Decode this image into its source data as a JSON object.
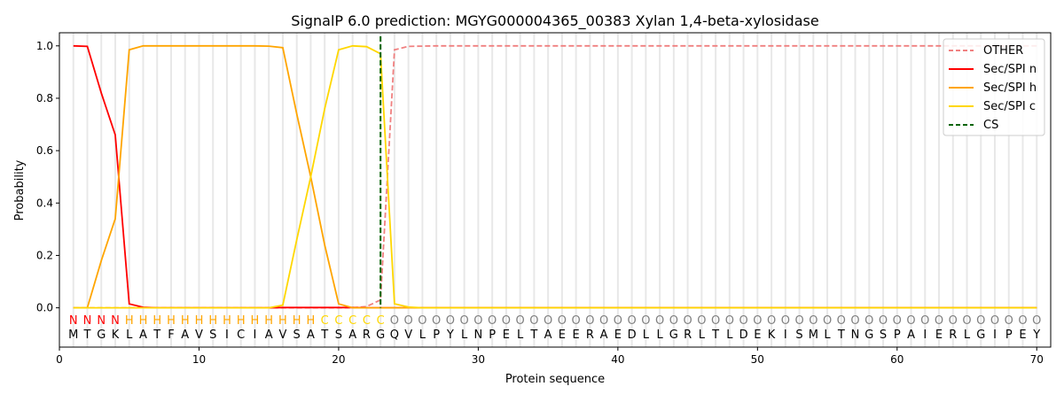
{
  "chart_data": {
    "type": "line",
    "title": "SignalP 6.0 prediction: MGYG000004365_00383 Xylan 1,4-beta-xylosidase",
    "xlabel": "Protein sequence",
    "ylabel": "Probability",
    "xlim": [
      0,
      71
    ],
    "ylim": [
      -0.15,
      1.05
    ],
    "xticks": [
      0,
      10,
      20,
      30,
      40,
      50,
      60,
      70
    ],
    "yticks": [
      0.0,
      0.2,
      0.4,
      0.6,
      0.8,
      1.0
    ],
    "grid": "vertical per residue",
    "legend_position": "top-right",
    "sequence": "MTGKLATFAVSICIAVSATSARGQVLPYLNPELTAEERAEDLLGRLTLDEKISMLTNGSPAIERLGIPEY",
    "labels": "NNNNHHHHHHHHHHHHHHCCCCCOOOOOOOOOOOOOOOOOOOOOOOOOOOOOOOOOOOOOOOOOOOOOOO",
    "label_colors": {
      "N": "#ff0000",
      "H": "#ffa500",
      "C": "#ffd700",
      "O": "#808080"
    },
    "cs_position": 23,
    "series": [
      {
        "name": "OTHER",
        "color": "#f08080",
        "dash": true,
        "values": [
          0,
          0,
          0,
          0,
          0,
          0,
          0,
          0,
          0,
          0,
          0,
          0,
          0,
          0,
          0,
          0,
          0,
          0,
          0,
          0,
          0,
          0.005,
          0.03,
          0.985,
          0.998,
          0.999,
          1,
          1,
          1,
          1,
          1,
          1,
          1,
          1,
          1,
          1,
          1,
          1,
          1,
          1,
          1,
          1,
          1,
          1,
          1,
          1,
          1,
          1,
          1,
          1,
          1,
          1,
          1,
          1,
          1,
          1,
          1,
          1,
          1,
          1,
          1,
          1,
          1,
          1,
          1,
          1,
          1,
          1,
          1,
          1
        ]
      },
      {
        "name": "Sec/SPI n",
        "color": "#ff0000",
        "dash": false,
        "values": [
          1.0,
          0.998,
          0.82,
          0.66,
          0.015,
          0.002,
          0,
          0,
          0,
          0,
          0,
          0,
          0,
          0,
          0,
          0.001,
          0.001,
          0.001,
          0.001,
          0.001,
          0.001,
          0,
          0,
          0,
          0,
          0,
          0,
          0,
          0,
          0,
          0,
          0,
          0,
          0,
          0,
          0,
          0,
          0,
          0,
          0,
          0,
          0,
          0,
          0,
          0,
          0,
          0,
          0,
          0,
          0,
          0,
          0,
          0,
          0,
          0,
          0,
          0,
          0,
          0,
          0,
          0,
          0,
          0,
          0,
          0,
          0,
          0,
          0,
          0,
          0
        ]
      },
      {
        "name": "Sec/SPI h",
        "color": "#ffa500",
        "dash": false,
        "values": [
          0,
          0,
          0.18,
          0.34,
          0.985,
          1.0,
          1.0,
          1.0,
          1.0,
          1.0,
          1.0,
          1.0,
          1.0,
          1.0,
          0.999,
          0.993,
          0.74,
          0.5,
          0.24,
          0.015,
          0,
          0,
          0,
          0,
          0,
          0,
          0,
          0,
          0,
          0,
          0,
          0,
          0,
          0,
          0,
          0,
          0,
          0,
          0,
          0,
          0,
          0,
          0,
          0,
          0,
          0,
          0,
          0,
          0,
          0,
          0,
          0,
          0,
          0,
          0,
          0,
          0,
          0,
          0,
          0,
          0,
          0,
          0,
          0,
          0,
          0,
          0,
          0,
          0,
          0
        ]
      },
      {
        "name": "Sec/SPI c",
        "color": "#ffd700",
        "dash": false,
        "values": [
          0,
          0,
          0,
          0,
          0,
          0,
          0,
          0,
          0,
          0,
          0,
          0,
          0,
          0,
          0,
          0.01,
          0.26,
          0.5,
          0.76,
          0.985,
          1.0,
          0.997,
          0.97,
          0.015,
          0.003,
          0,
          0,
          0,
          0,
          0,
          0,
          0,
          0,
          0,
          0,
          0,
          0,
          0,
          0,
          0,
          0,
          0,
          0,
          0,
          0,
          0,
          0,
          0,
          0,
          0,
          0,
          0,
          0,
          0,
          0,
          0,
          0,
          0,
          0,
          0,
          0,
          0,
          0,
          0,
          0,
          0,
          0,
          0,
          0,
          0
        ]
      }
    ],
    "cs_legend": {
      "name": "CS",
      "color": "#006400"
    }
  }
}
